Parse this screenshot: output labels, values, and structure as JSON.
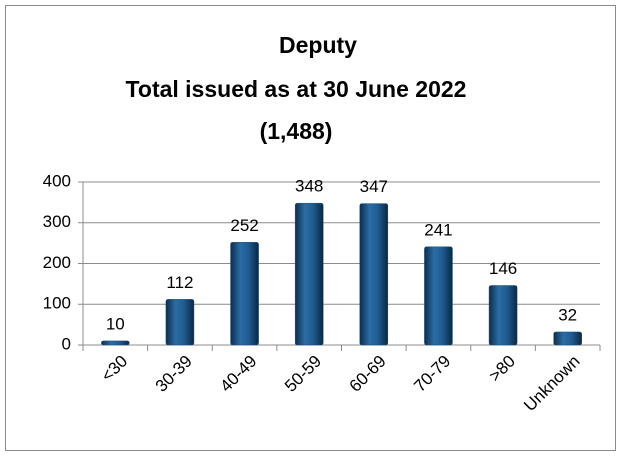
{
  "chart_data": {
    "type": "bar",
    "title": [
      "Deputy",
      "Total issued as at 30 June 2022",
      "(1,488)"
    ],
    "categories": [
      "<30",
      "30-39",
      "40-49",
      "50-59",
      "60-69",
      "70-79",
      ">80",
      "Unknown"
    ],
    "values": [
      10,
      112,
      252,
      348,
      347,
      241,
      146,
      32
    ],
    "color": "#1f4e79",
    "ylim": [
      0,
      400
    ],
    "yticks": [
      0,
      100,
      200,
      300,
      400
    ],
    "grid": true
  }
}
